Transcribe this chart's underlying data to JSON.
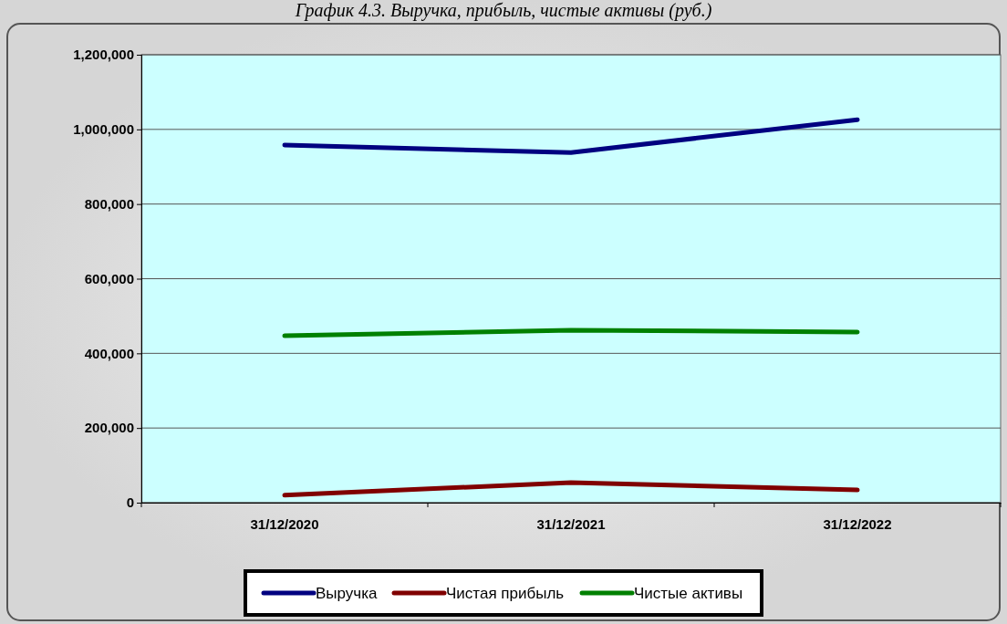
{
  "chart_data": {
    "type": "line",
    "title": "График 4.3. Выручка, прибыль, чистые активы (руб.)",
    "categories": [
      "31/12/2020",
      "31/12/2021",
      "31/12/2022"
    ],
    "series": [
      {
        "name": "Выручка",
        "color": "#000080",
        "values": [
          958000,
          938000,
          1026000
        ]
      },
      {
        "name": "Чистая прибыль",
        "color": "#800000",
        "values": [
          20000,
          54000,
          34000
        ]
      },
      {
        "name": "Чистые активы",
        "color": "#008000",
        "values": [
          447000,
          462000,
          457000
        ]
      }
    ],
    "ylim": [
      0,
      1200000
    ],
    "yticks": [
      {
        "value": 0,
        "label": "0"
      },
      {
        "value": 200000,
        "label": "200,000"
      },
      {
        "value": 400000,
        "label": "400,000"
      },
      {
        "value": 600000,
        "label": "600,000"
      },
      {
        "value": 800000,
        "label": "800,000"
      },
      {
        "value": 1000000,
        "label": "1,000,000"
      },
      {
        "value": 1200000,
        "label": "1,200,000"
      }
    ],
    "grid": "y",
    "legend": "bottom",
    "marker": "none",
    "line_style": "solid"
  }
}
